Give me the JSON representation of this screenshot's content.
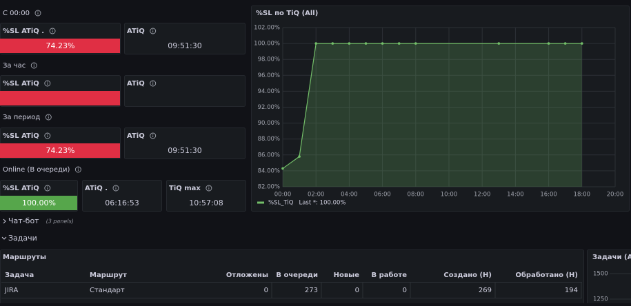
{
  "groups": [
    {
      "title": "С 00:00",
      "panels": [
        {
          "title": "%SL ATiQ .",
          "value": "74.23%",
          "color": "#e02f44"
        },
        {
          "title": "ATiQ",
          "value": "09:51:30"
        }
      ]
    },
    {
      "title": "За час",
      "panels": [
        {
          "title": "%SL ATiQ",
          "color": "#e02f44"
        },
        {
          "title": "ATiQ"
        }
      ]
    },
    {
      "title": "За период",
      "panels": [
        {
          "title": "%SL ATiQ",
          "value": "74.23%",
          "color": "#e02f44"
        },
        {
          "title": "ATiQ",
          "value": "09:51:30"
        }
      ]
    },
    {
      "title": "Online (В очереди)",
      "panels": [
        {
          "title": "%SL ATiQ",
          "value": "100.00%",
          "color": "#56a64b"
        },
        {
          "title": "ATiQ .",
          "value": "06:16:53"
        },
        {
          "title": "TiQ max",
          "value": "10:57:08"
        }
      ]
    }
  ],
  "chart_data": {
    "type": "line",
    "title": "%SL по TiQ (All)",
    "x": [
      0,
      1,
      2,
      3,
      4,
      5,
      6,
      7,
      8,
      13,
      16,
      17,
      18
    ],
    "series": [
      {
        "name": "%SL_TiQ",
        "color": "#73bf69",
        "values": [
          84.3,
          85.8,
          100,
          100,
          100,
          100,
          100,
          100,
          100,
          100,
          100,
          100,
          100
        ]
      }
    ],
    "legend_stat": "Last *: 100.00%",
    "xlim": [
      0,
      20
    ],
    "xticks": [
      {
        "value": 0,
        "label": "00:00"
      },
      {
        "value": 2,
        "label": "02:00"
      },
      {
        "value": 4,
        "label": "04:00"
      },
      {
        "value": 6,
        "label": "06:00"
      },
      {
        "value": 8,
        "label": "08:00"
      },
      {
        "value": 10,
        "label": "10:00"
      },
      {
        "value": 12,
        "label": "12:00"
      },
      {
        "value": 14,
        "label": "14:00"
      },
      {
        "value": 16,
        "label": "16:00"
      },
      {
        "value": 18,
        "label": "18:00"
      },
      {
        "value": 20,
        "label": "20:00"
      }
    ],
    "ylim": [
      82,
      102
    ],
    "yticks": [
      {
        "value": 82,
        "label": "82.00%"
      },
      {
        "value": 84,
        "label": "84.00%"
      },
      {
        "value": 86,
        "label": "86.00%"
      },
      {
        "value": 88,
        "label": "88.00%"
      },
      {
        "value": 90,
        "label": "90.00%"
      },
      {
        "value": 92,
        "label": "92.00%"
      },
      {
        "value": 94,
        "label": "94.00%"
      },
      {
        "value": 96,
        "label": "96.00%"
      },
      {
        "value": 98,
        "label": "98.00%"
      },
      {
        "value": 100,
        "label": "100.00%"
      },
      {
        "value": 102,
        "label": "102.00%"
      }
    ],
    "grid": true
  },
  "rows": [
    {
      "title": "Чат-бот",
      "note": "(3 panels)"
    },
    {
      "title": "Задачи"
    }
  ],
  "table": {
    "title": "Маршруты",
    "columns": [
      "Задача",
      "Маршрут",
      "Отложены",
      "В очереди",
      "Новые",
      "В работе",
      "Создано (Н)",
      "Обработано (Н)"
    ],
    "rows": [
      [
        "JIRA",
        "Стандарт",
        "0",
        "273",
        "0",
        "0",
        "269",
        "194"
      ]
    ]
  },
  "side_chart": {
    "title": "Задачи (All)",
    "yticks": [
      1500,
      1250
    ]
  }
}
